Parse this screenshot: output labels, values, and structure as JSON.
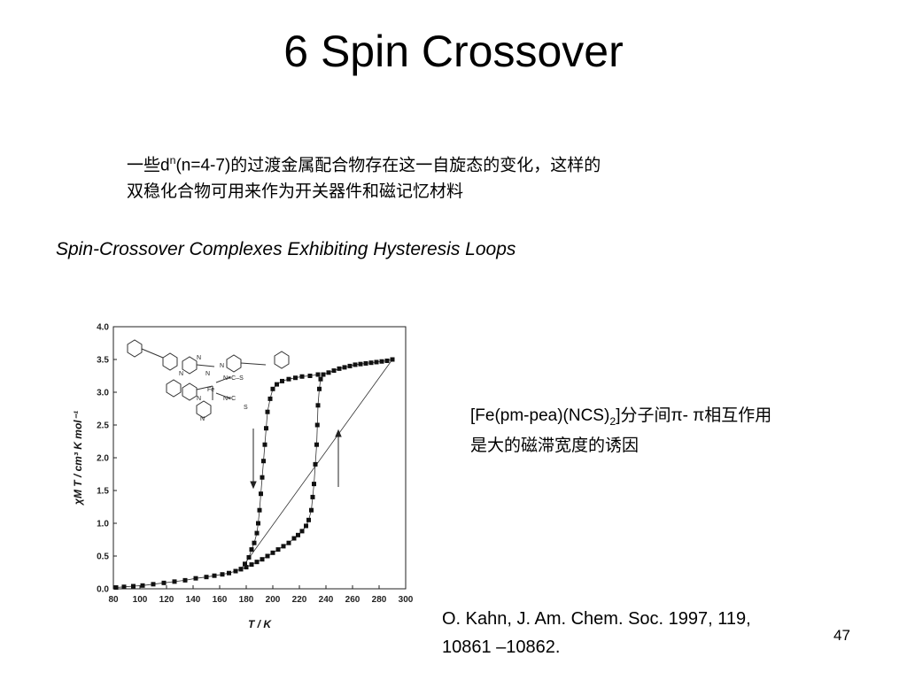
{
  "slide": {
    "title": "6 Spin Crossover",
    "intro_line1_a": "一些d",
    "intro_line1_sup": "n",
    "intro_line1_b": "(n=4-7)的过渡金属配合物存在这一自旋态的变化，这样的",
    "intro_line2": "双稳化合物可用来作为开关器件和磁记忆材料",
    "subtitle": "Spin-Crossover Complexes Exhibiting Hysteresis Loops",
    "note_a": "[Fe(pm-pea)(NCS)",
    "note_sub": "2",
    "note_b": "]分子间π- π相互作用",
    "note_line2": "是大的磁滞宽度的诱因",
    "citation_line1": "O. Kahn, J. Am. Chem. Soc. 1997, 119,",
    "citation_line2": "10861 –10862.",
    "page_number": "47"
  },
  "colors": {
    "background": "#ffffff",
    "text": "#000000",
    "markers": "#111111"
  },
  "chart_data": {
    "type": "scatter",
    "xlabel": "T / K",
    "ylabel": "χM T / cm³ K mol⁻¹",
    "xlim": [
      80,
      300
    ],
    "ylim": [
      0,
      4.0
    ],
    "x_ticks": [
      "80",
      "100",
      "120",
      "140",
      "160",
      "180",
      "200",
      "220",
      "240",
      "260",
      "280",
      "300"
    ],
    "y_ticks": [
      "0.0",
      "0.5",
      "1.0",
      "1.5",
      "2.0",
      "2.5",
      "3.0",
      "3.5",
      "4.0"
    ],
    "structure_labels": [
      "N",
      "N",
      "Fe",
      "N≡C–S",
      "N≡C",
      "S",
      "N",
      "N",
      "N",
      "N"
    ],
    "series": [
      {
        "values": [
          [
            82,
            0.02
          ],
          [
            88,
            0.03
          ],
          [
            95,
            0.04
          ],
          [
            102,
            0.05
          ],
          [
            110,
            0.07
          ],
          [
            118,
            0.09
          ],
          [
            126,
            0.11
          ],
          [
            134,
            0.13
          ],
          [
            142,
            0.16
          ],
          [
            150,
            0.18
          ],
          [
            156,
            0.2
          ],
          [
            162,
            0.22
          ],
          [
            167,
            0.24
          ],
          [
            172,
            0.27
          ],
          [
            176,
            0.3
          ],
          [
            180,
            0.33
          ],
          [
            184,
            0.37
          ],
          [
            188,
            0.41
          ],
          [
            192,
            0.45
          ],
          [
            196,
            0.5
          ],
          [
            200,
            0.55
          ],
          [
            204,
            0.6
          ],
          [
            208,
            0.65
          ],
          [
            212,
            0.7
          ],
          [
            216,
            0.77
          ],
          [
            219,
            0.82
          ],
          [
            222,
            0.88
          ],
          [
            225,
            0.96
          ],
          [
            227,
            1.05
          ],
          [
            229,
            1.2
          ],
          [
            230,
            1.4
          ],
          [
            231,
            1.6
          ],
          [
            232,
            1.9
          ],
          [
            233,
            2.2
          ],
          [
            233.5,
            2.5
          ],
          [
            234,
            2.8
          ],
          [
            235,
            3.05
          ],
          [
            236,
            3.2
          ],
          [
            238,
            3.27
          ],
          [
            242,
            3.3
          ],
          [
            246,
            3.33
          ],
          [
            250,
            3.36
          ],
          [
            254,
            3.38
          ],
          [
            258,
            3.4
          ],
          [
            262,
            3.42
          ],
          [
            266,
            3.43
          ],
          [
            270,
            3.44
          ],
          [
            274,
            3.45
          ],
          [
            278,
            3.46
          ],
          [
            282,
            3.47
          ],
          [
            286,
            3.48
          ],
          [
            290,
            3.5
          ],
          [
            176,
            0.3
          ],
          [
            179,
            0.38
          ],
          [
            182,
            0.48
          ],
          [
            184,
            0.6
          ],
          [
            186,
            0.7
          ],
          [
            188,
            0.85
          ],
          [
            189,
            1.0
          ],
          [
            190,
            1.2
          ],
          [
            191,
            1.45
          ],
          [
            192,
            1.7
          ],
          [
            193,
            1.95
          ],
          [
            194,
            2.2
          ],
          [
            195,
            2.45
          ],
          [
            196,
            2.7
          ],
          [
            198,
            2.9
          ],
          [
            200,
            3.05
          ],
          [
            203,
            3.12
          ],
          [
            207,
            3.17
          ],
          [
            212,
            3.2
          ],
          [
            217,
            3.22
          ],
          [
            222,
            3.24
          ],
          [
            228,
            3.25
          ],
          [
            234,
            3.27
          ]
        ]
      }
    ],
    "annotations": [
      "arrow down at ~185 K (cooling)",
      "arrow up at ~238 K (heating)"
    ]
  }
}
